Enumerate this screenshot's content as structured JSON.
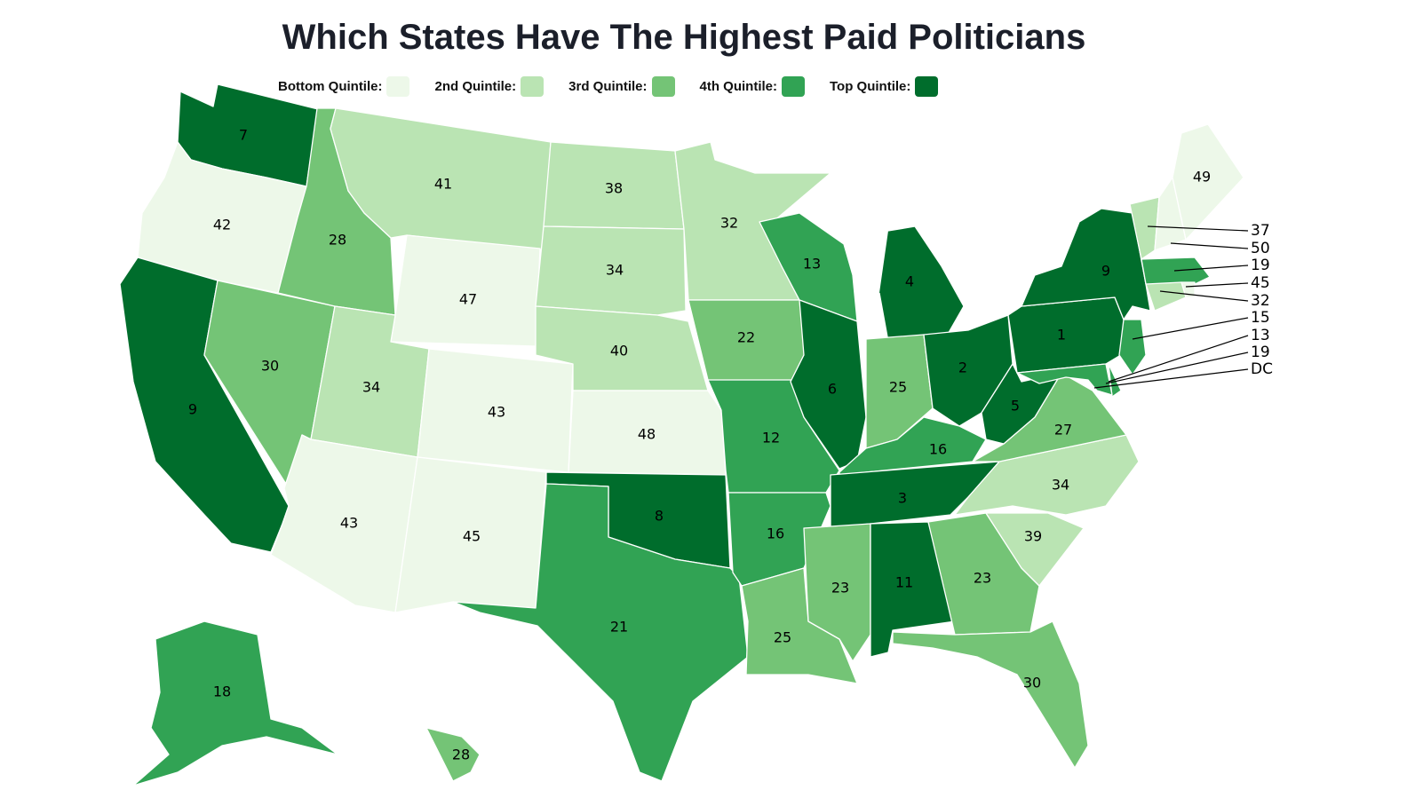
{
  "title": "Which States Have The Highest Paid Politicians",
  "legend": [
    {
      "label": "Bottom Quintile:",
      "color": "#edf8e9"
    },
    {
      "label": "2nd Quintile:",
      "color": "#bae4b3"
    },
    {
      "label": "3rd Quintile:",
      "color": "#74c476"
    },
    {
      "label": "4th Quintile:",
      "color": "#31a354"
    },
    {
      "label": "Top Quintile:",
      "color": "#006d2c"
    }
  ],
  "states": [
    {
      "id": "WA",
      "rank": "7",
      "q": 4
    },
    {
      "id": "OR",
      "rank": "42",
      "q": 0
    },
    {
      "id": "CA",
      "rank": "9",
      "q": 4
    },
    {
      "id": "NV",
      "rank": "30",
      "q": 2
    },
    {
      "id": "ID",
      "rank": "28",
      "q": 2
    },
    {
      "id": "MT",
      "rank": "41",
      "q": 1
    },
    {
      "id": "WY",
      "rank": "47",
      "q": 0
    },
    {
      "id": "UT",
      "rank": "34",
      "q": 1
    },
    {
      "id": "AZ",
      "rank": "43",
      "q": 0
    },
    {
      "id": "CO",
      "rank": "43",
      "q": 0
    },
    {
      "id": "NM",
      "rank": "45",
      "q": 0
    },
    {
      "id": "ND",
      "rank": "38",
      "q": 1
    },
    {
      "id": "SD",
      "rank": "34",
      "q": 1
    },
    {
      "id": "NE",
      "rank": "40",
      "q": 1
    },
    {
      "id": "KS",
      "rank": "48",
      "q": 0
    },
    {
      "id": "OK",
      "rank": "8",
      "q": 4
    },
    {
      "id": "TX",
      "rank": "21",
      "q": 3
    },
    {
      "id": "MN",
      "rank": "32",
      "q": 1
    },
    {
      "id": "IA",
      "rank": "22",
      "q": 2
    },
    {
      "id": "MO",
      "rank": "12",
      "q": 3
    },
    {
      "id": "AR",
      "rank": "16",
      "q": 3
    },
    {
      "id": "LA",
      "rank": "25",
      "q": 2
    },
    {
      "id": "WI",
      "rank": "13",
      "q": 3
    },
    {
      "id": "IL",
      "rank": "6",
      "q": 4
    },
    {
      "id": "MI",
      "rank": "4",
      "q": 4
    },
    {
      "id": "IN",
      "rank": "25",
      "q": 2
    },
    {
      "id": "OH",
      "rank": "2",
      "q": 4
    },
    {
      "id": "KY",
      "rank": "16",
      "q": 3
    },
    {
      "id": "TN",
      "rank": "3",
      "q": 4
    },
    {
      "id": "MS",
      "rank": "23",
      "q": 2
    },
    {
      "id": "AL",
      "rank": "11",
      "q": 4
    },
    {
      "id": "GA",
      "rank": "23",
      "q": 2
    },
    {
      "id": "FL",
      "rank": "30",
      "q": 2
    },
    {
      "id": "SC",
      "rank": "39",
      "q": 1
    },
    {
      "id": "NC",
      "rank": "34",
      "q": 1
    },
    {
      "id": "VA",
      "rank": "27",
      "q": 2
    },
    {
      "id": "WV",
      "rank": "5",
      "q": 4
    },
    {
      "id": "PA",
      "rank": "1",
      "q": 4
    },
    {
      "id": "NY",
      "rank": "9",
      "q": 4
    },
    {
      "id": "VT",
      "rank": "37",
      "q": 1
    },
    {
      "id": "NH",
      "rank": "50",
      "q": 0
    },
    {
      "id": "ME",
      "rank": "49",
      "q": 0
    },
    {
      "id": "MA",
      "rank": "19",
      "q": 3
    },
    {
      "id": "RI",
      "rank": "45",
      "q": 0
    },
    {
      "id": "CT",
      "rank": "32",
      "q": 1
    },
    {
      "id": "NJ",
      "rank": "15",
      "q": 3
    },
    {
      "id": "DE",
      "rank": "13",
      "q": 3
    },
    {
      "id": "MD",
      "rank": "19",
      "q": 3
    },
    {
      "id": "AK",
      "rank": "18",
      "q": 3
    },
    {
      "id": "HI",
      "rank": "28",
      "q": 2
    }
  ],
  "dc_label": "DC"
}
